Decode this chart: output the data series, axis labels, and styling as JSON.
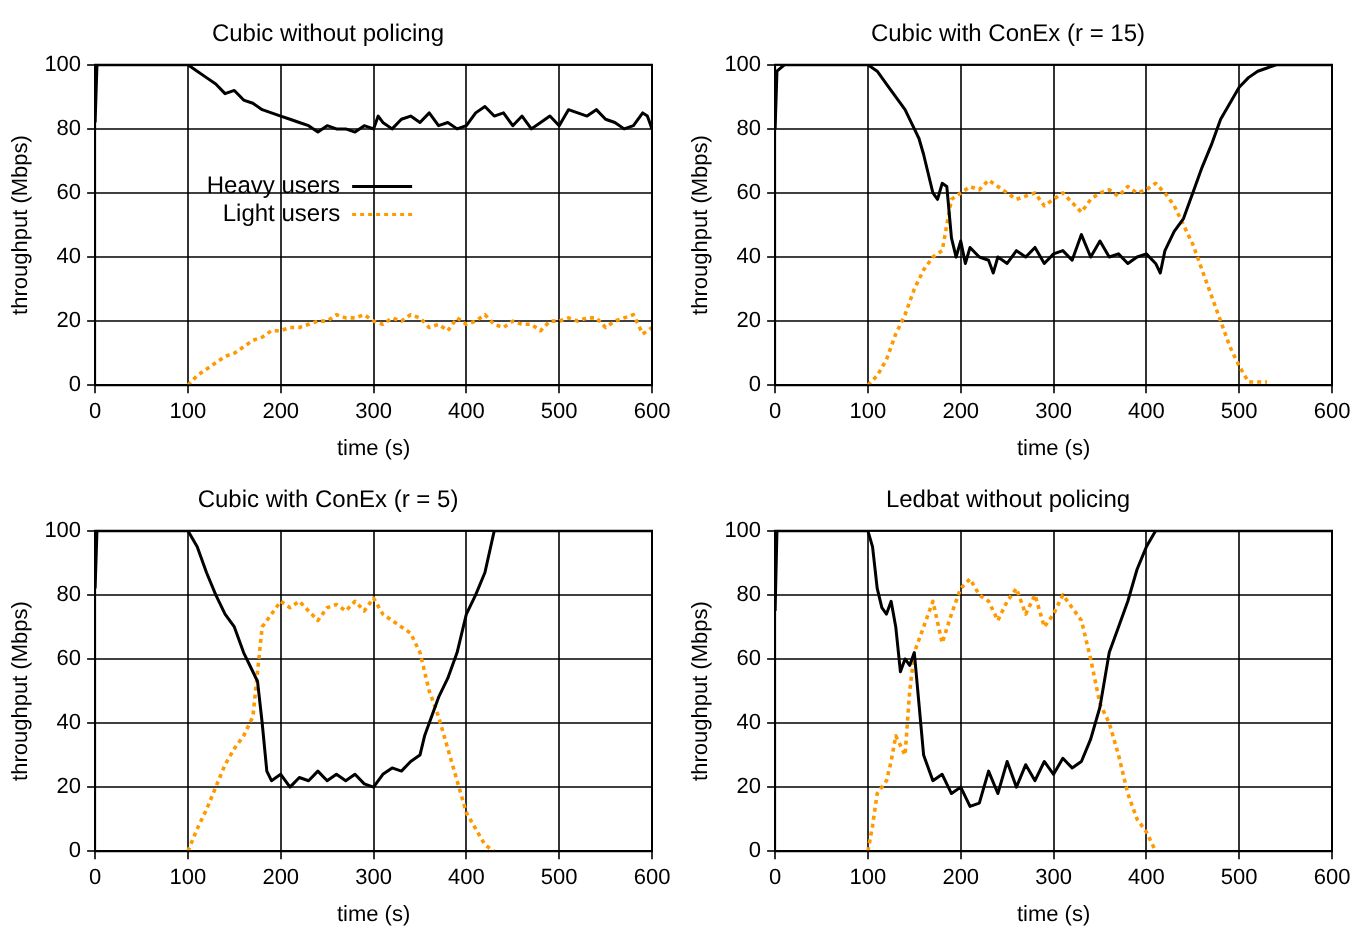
{
  "chart_data": [
    {
      "type": "line",
      "title": "Cubic without policing",
      "xlabel": "time (s)",
      "ylabel": "throughput (Mbps)",
      "xlim": [
        0,
        600
      ],
      "xticks": [
        0,
        100,
        200,
        300,
        400,
        500,
        600
      ],
      "ylim": [
        0,
        100
      ],
      "yticks": [
        0,
        20,
        40,
        60,
        80,
        100
      ],
      "grid": true,
      "legend": "center left",
      "marker": "none",
      "series": [
        {
          "name": "Heavy users",
          "color": "#000000",
          "line_style": "solid",
          "x": [
            0,
            2,
            100,
            110,
            120,
            130,
            140,
            150,
            160,
            170,
            180,
            190,
            200,
            210,
            220,
            230,
            240,
            250,
            260,
            270,
            280,
            290,
            300,
            305,
            310,
            320,
            330,
            340,
            350,
            360,
            370,
            380,
            390,
            400,
            410,
            420,
            430,
            440,
            450,
            460,
            470,
            480,
            490,
            500,
            510,
            520,
            530,
            540,
            550,
            560,
            570,
            580,
            590,
            595,
            600
          ],
          "values": [
            82,
            100,
            100,
            98,
            96,
            94,
            91,
            92,
            89,
            88,
            86,
            85,
            84,
            83,
            82,
            81,
            79,
            81,
            80,
            80,
            79,
            81,
            80,
            84,
            82,
            80,
            83,
            84,
            82,
            85,
            81,
            82,
            80,
            81,
            85,
            87,
            84,
            85,
            81,
            84,
            80,
            82,
            84,
            81,
            86,
            85,
            84,
            86,
            83,
            82,
            80,
            81,
            85,
            84,
            80
          ]
        },
        {
          "name": "Light users",
          "color": "#ff9900",
          "line_style": "dotted",
          "x": [
            100,
            110,
            120,
            130,
            140,
            150,
            160,
            170,
            180,
            190,
            200,
            210,
            220,
            230,
            240,
            250,
            260,
            270,
            280,
            290,
            300,
            310,
            320,
            330,
            340,
            350,
            360,
            370,
            380,
            390,
            400,
            410,
            420,
            430,
            440,
            450,
            460,
            470,
            480,
            490,
            500,
            510,
            520,
            530,
            540,
            550,
            560,
            570,
            580,
            590,
            600
          ],
          "values": [
            0,
            3,
            5,
            7,
            9,
            10,
            12,
            14,
            15,
            17,
            17,
            18,
            18,
            19,
            20,
            20,
            22,
            21,
            21,
            22,
            20,
            19,
            21,
            20,
            22,
            21,
            18,
            19,
            17,
            21,
            19,
            20,
            22,
            19,
            18,
            20,
            19,
            19,
            17,
            20,
            20,
            21,
            20,
            21,
            21,
            18,
            20,
            21,
            22,
            16,
            18
          ]
        }
      ]
    },
    {
      "type": "line",
      "title": "Cubic with ConEx (r = 15)",
      "xlabel": "time (s)",
      "ylabel": "throughput (Mbps)",
      "xlim": [
        0,
        600
      ],
      "xticks": [
        0,
        100,
        200,
        300,
        400,
        500,
        600
      ],
      "ylim": [
        0,
        100
      ],
      "yticks": [
        0,
        20,
        40,
        60,
        80,
        100
      ],
      "grid": true,
      "marker": "none",
      "series": [
        {
          "color": "#000000",
          "line_style": "solid",
          "x": [
            0,
            2,
            10,
            100,
            110,
            120,
            130,
            140,
            150,
            155,
            160,
            165,
            170,
            175,
            180,
            185,
            190,
            195,
            200,
            205,
            210,
            220,
            230,
            235,
            240,
            250,
            260,
            270,
            280,
            290,
            300,
            310,
            320,
            330,
            340,
            350,
            360,
            370,
            380,
            390,
            400,
            410,
            415,
            420,
            430,
            440,
            445,
            450,
            460,
            470,
            480,
            490,
            500,
            510,
            520,
            530,
            540,
            600
          ],
          "values": [
            80,
            98,
            100,
            100,
            98,
            94,
            90,
            86,
            80,
            77,
            72,
            66,
            60,
            58,
            63,
            62,
            46,
            40,
            45,
            38,
            43,
            40,
            39,
            35,
            40,
            38,
            42,
            40,
            43,
            38,
            41,
            42,
            39,
            47,
            40,
            45,
            40,
            41,
            38,
            40,
            41,
            38,
            35,
            42,
            48,
            52,
            56,
            60,
            68,
            75,
            83,
            88,
            93,
            96,
            98,
            99,
            100,
            100
          ]
        },
        {
          "color": "#ff9900",
          "line_style": "dotted",
          "x": [
            100,
            110,
            120,
            130,
            140,
            150,
            160,
            170,
            180,
            190,
            200,
            210,
            220,
            230,
            240,
            250,
            260,
            270,
            280,
            290,
            300,
            310,
            320,
            330,
            340,
            350,
            360,
            370,
            380,
            390,
            400,
            410,
            420,
            430,
            440,
            450,
            460,
            470,
            480,
            490,
            500,
            510,
            520,
            530
          ],
          "values": [
            0,
            3,
            8,
            16,
            22,
            30,
            36,
            40,
            42,
            58,
            60,
            62,
            61,
            64,
            62,
            60,
            58,
            59,
            60,
            56,
            58,
            60,
            57,
            54,
            58,
            60,
            61,
            59,
            62,
            60,
            61,
            63,
            60,
            56,
            50,
            44,
            36,
            28,
            20,
            12,
            6,
            1,
            1,
            1
          ]
        }
      ]
    },
    {
      "type": "line",
      "title": "Cubic with ConEx (r = 5)",
      "xlabel": "time (s)",
      "ylabel": "throughput (Mbps)",
      "xlim": [
        0,
        600
      ],
      "xticks": [
        0,
        100,
        200,
        300,
        400,
        500,
        600
      ],
      "ylim": [
        0,
        100
      ],
      "yticks": [
        0,
        20,
        40,
        60,
        80,
        100
      ],
      "grid": true,
      "marker": "none",
      "series": [
        {
          "color": "#000000",
          "line_style": "solid",
          "x": [
            0,
            2,
            100,
            110,
            120,
            130,
            140,
            150,
            160,
            170,
            175,
            180,
            185,
            190,
            200,
            210,
            220,
            230,
            240,
            250,
            260,
            270,
            280,
            290,
            300,
            310,
            320,
            330,
            340,
            350,
            355,
            360,
            370,
            380,
            390,
            400,
            410,
            420,
            430,
            600
          ],
          "values": [
            82,
            100,
            100,
            95,
            87,
            80,
            74,
            70,
            62,
            56,
            53,
            40,
            25,
            22,
            24,
            20,
            23,
            22,
            25,
            22,
            24,
            22,
            24,
            21,
            20,
            24,
            26,
            25,
            28,
            30,
            36,
            40,
            48,
            54,
            62,
            74,
            80,
            87,
            100,
            100
          ]
        },
        {
          "color": "#ff9900",
          "line_style": "dotted",
          "x": [
            100,
            110,
            120,
            130,
            140,
            150,
            160,
            170,
            180,
            190,
            200,
            210,
            220,
            230,
            240,
            250,
            260,
            270,
            280,
            290,
            300,
            310,
            320,
            330,
            340,
            350,
            360,
            370,
            380,
            390,
            400,
            410,
            420,
            430
          ],
          "values": [
            0,
            7,
            13,
            20,
            27,
            32,
            36,
            42,
            70,
            74,
            78,
            76,
            78,
            75,
            72,
            76,
            77,
            75,
            78,
            75,
            79,
            74,
            72,
            70,
            68,
            62,
            50,
            42,
            32,
            22,
            12,
            7,
            2,
            0
          ]
        }
      ]
    },
    {
      "type": "line",
      "title": "Ledbat without policing",
      "xlabel": "time (s)",
      "ylabel": "throughput (Mbps)",
      "xlim": [
        0,
        600
      ],
      "xticks": [
        0,
        100,
        200,
        300,
        400,
        500,
        600
      ],
      "ylim": [
        0,
        100
      ],
      "yticks": [
        0,
        20,
        40,
        60,
        80,
        100
      ],
      "grid": true,
      "marker": "none",
      "series": [
        {
          "color": "#000000",
          "line_style": "solid",
          "x": [
            0,
            2,
            100,
            105,
            110,
            115,
            120,
            125,
            130,
            135,
            140,
            145,
            150,
            155,
            160,
            170,
            180,
            190,
            200,
            210,
            220,
            230,
            240,
            250,
            260,
            270,
            280,
            290,
            300,
            310,
            320,
            330,
            340,
            350,
            360,
            370,
            380,
            390,
            400,
            410,
            600
          ],
          "values": [
            75,
            100,
            100,
            95,
            82,
            76,
            74,
            78,
            70,
            56,
            60,
            58,
            62,
            46,
            30,
            22,
            24,
            18,
            20,
            14,
            15,
            25,
            18,
            28,
            20,
            27,
            22,
            28,
            24,
            29,
            26,
            28,
            35,
            45,
            62,
            70,
            78,
            88,
            95,
            100,
            100
          ]
        },
        {
          "color": "#ff9900",
          "line_style": "dotted",
          "x": [
            100,
            105,
            110,
            120,
            125,
            130,
            140,
            145,
            150,
            160,
            170,
            180,
            190,
            200,
            210,
            220,
            230,
            240,
            250,
            260,
            270,
            280,
            290,
            300,
            310,
            320,
            330,
            340,
            350,
            360,
            370,
            380,
            390,
            400,
            410
          ],
          "values": [
            0,
            8,
            18,
            22,
            28,
            36,
            30,
            50,
            62,
            70,
            78,
            65,
            74,
            82,
            85,
            80,
            78,
            72,
            78,
            82,
            74,
            80,
            70,
            74,
            80,
            76,
            72,
            60,
            46,
            40,
            30,
            18,
            10,
            6,
            0
          ]
        }
      ]
    }
  ]
}
